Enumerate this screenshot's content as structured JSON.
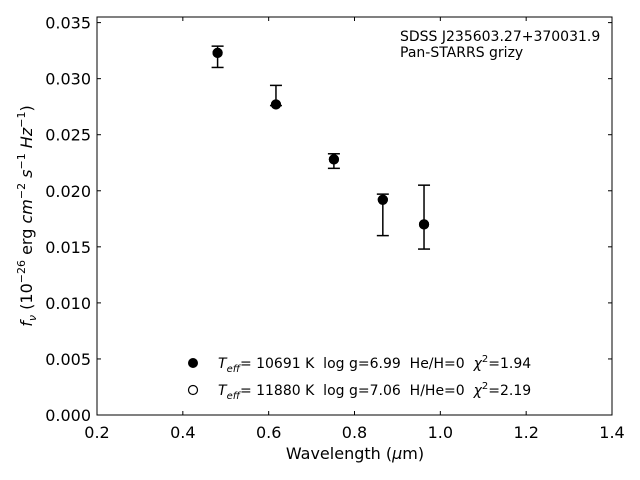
{
  "chart_data": {
    "type": "scatter",
    "annotation_lines": [
      "SDSS J235603.27+370031.9",
      "Pan-STARRS grizy"
    ],
    "xlim": [
      0.2,
      1.4
    ],
    "ylim": [
      0.0,
      0.0355
    ],
    "x_ticks": [
      0.2,
      0.4,
      0.6,
      0.8,
      1.0,
      1.2,
      1.4
    ],
    "x_tick_labels": [
      "0.2",
      "0.4",
      "0.6",
      "0.8",
      "1.0",
      "1.2",
      "1.4"
    ],
    "y_ticks": [
      0.0,
      0.005,
      0.01,
      0.015,
      0.02,
      0.025,
      0.03,
      0.035
    ],
    "y_tick_labels": [
      "0.000",
      "0.005",
      "0.010",
      "0.015",
      "0.020",
      "0.025",
      "0.030",
      "0.035"
    ],
    "grid": false,
    "observed": {
      "x": [
        0.481,
        0.617,
        0.752,
        0.866,
        0.962
      ],
      "y_upper": [
        0.0329,
        0.0294,
        0.0233,
        0.0197,
        0.0205
      ],
      "y_lower": [
        0.031,
        0.0276,
        0.022,
        0.016,
        0.0148
      ],
      "color": "#000000"
    },
    "series": [
      {
        "legend": "$T_{eff}$= 10691 K  log g=6.99  He/H=0  $\\chi^2$=1.94",
        "marker": "filled-circle",
        "color": "#000000",
        "x": [
          0.481,
          0.617,
          0.752,
          0.866,
          0.962
        ],
        "y": [
          0.0323,
          0.0277,
          0.0228,
          0.0192,
          0.017
        ]
      },
      {
        "legend": "$T_{eff}$= 11880 K  log g=7.06  H/He=0  $\\chi^2$=2.19",
        "marker": "open-circle",
        "color": "#000000",
        "x": [
          0.481,
          0.617,
          0.752,
          0.866,
          0.962
        ],
        "y": [
          0.0323,
          0.0277,
          0.0228,
          0.0192,
          0.017
        ]
      }
    ],
    "legend_placement": "lower-center"
  },
  "axes": {
    "xlabel": "Wavelength ($\\mu$m)",
    "ylabel": "$f_\\nu$ ($10^{-26}$ erg $cm^{-2}$ $s^{-1}$ $Hz^{-1}$)"
  },
  "legend_items": [
    {
      "prefix": "T",
      "sub": "eff",
      "mid": "= 10691 K  log g=6.99  He/H=0  ",
      "chi": "χ",
      "sup": "2",
      "tail": "=1.94"
    },
    {
      "prefix": "T",
      "sub": "eff",
      "mid": "= 11880 K  log g=7.06  H/He=0  ",
      "chi": "χ",
      "sup": "2",
      "tail": "=2.19"
    }
  ],
  "xlabel_parts": {
    "main": "Wavelength (",
    "mu": "μ",
    "unit": "m)"
  },
  "ylabel_parts": {
    "f": "f",
    "nu": "ν",
    "open": " (10",
    "e26": "−26",
    "erg": " erg ",
    "cm": "cm",
    "e2": "−2",
    "s": " s",
    "e1": "−1",
    "hz": " Hz",
    "e1b": "−1",
    "close": ")"
  }
}
